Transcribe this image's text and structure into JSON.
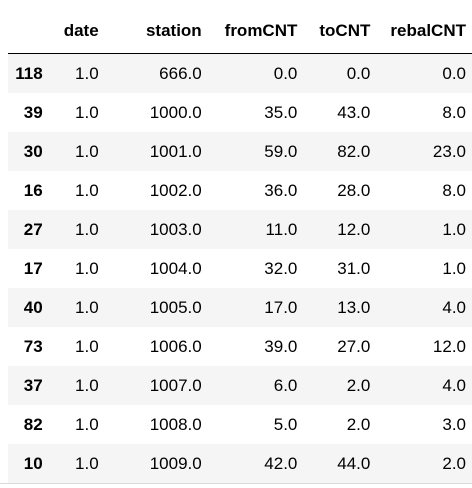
{
  "table": {
    "index_header": "",
    "columns": [
      "date",
      "station",
      "fromCNT",
      "toCNT",
      "rebalCNT"
    ],
    "rows": [
      {
        "index": "118",
        "cells": [
          "1.0",
          "666.0",
          "0.0",
          "0.0",
          "0.0"
        ]
      },
      {
        "index": "39",
        "cells": [
          "1.0",
          "1000.0",
          "35.0",
          "43.0",
          "8.0"
        ]
      },
      {
        "index": "30",
        "cells": [
          "1.0",
          "1001.0",
          "59.0",
          "82.0",
          "23.0"
        ]
      },
      {
        "index": "16",
        "cells": [
          "1.0",
          "1002.0",
          "36.0",
          "28.0",
          "8.0"
        ]
      },
      {
        "index": "27",
        "cells": [
          "1.0",
          "1003.0",
          "11.0",
          "12.0",
          "1.0"
        ]
      },
      {
        "index": "17",
        "cells": [
          "1.0",
          "1004.0",
          "32.0",
          "31.0",
          "1.0"
        ]
      },
      {
        "index": "40",
        "cells": [
          "1.0",
          "1005.0",
          "17.0",
          "13.0",
          "4.0"
        ]
      },
      {
        "index": "73",
        "cells": [
          "1.0",
          "1006.0",
          "39.0",
          "27.0",
          "12.0"
        ]
      },
      {
        "index": "37",
        "cells": [
          "1.0",
          "1007.0",
          "6.0",
          "2.0",
          "4.0"
        ]
      },
      {
        "index": "82",
        "cells": [
          "1.0",
          "1008.0",
          "5.0",
          "2.0",
          "3.0"
        ]
      },
      {
        "index": "10",
        "cells": [
          "1.0",
          "1009.0",
          "42.0",
          "44.0",
          "2.0"
        ]
      }
    ]
  },
  "colors": {
    "text": "#000000",
    "row_stripe": "#f5f5f5",
    "background": "#ffffff",
    "header_rule": "#000000"
  }
}
